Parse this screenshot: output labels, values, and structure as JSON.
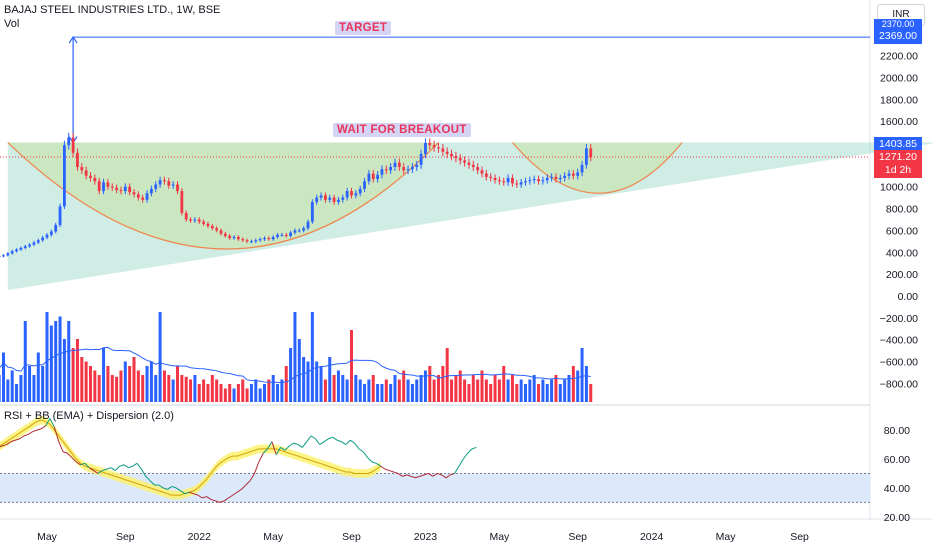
{
  "header": {
    "symbol_line": "BAJAJ STEEL INDUSTRIES LTD., 1W, BSE",
    "volume_label": "Vol",
    "rsi_label": "RSI + BB (EMA) + Dispersion (2.0)",
    "currency": "INR"
  },
  "annotations": {
    "target_label": "TARGET",
    "breakout_label": "WAIT FOR BREAKOUT"
  },
  "price_tags": {
    "target": "2369.00",
    "resistance": "1403.85",
    "last": "1271.20",
    "countdown": "1d 2h",
    "partial_top": "2370.00"
  },
  "colors": {
    "up": "#2962ff",
    "down": "#f23645",
    "triangle_fill": "#a8dccf",
    "cup_fill": "#c8e6b4",
    "rsi_band": "#fdf16a",
    "rsi_zone": "#dbe9fb",
    "target_line": "#2962ff",
    "last_price": "#f23645",
    "label_bg": "#d4d4f5",
    "label_text": "#e8355a"
  },
  "chart_data": [
    {
      "type": "candlestick",
      "title": "BAJAJ STEEL INDUSTRIES LTD., 1W, BSE",
      "ylim": [
        -800,
        2400
      ],
      "y_ticks": [
        2200,
        2000,
        1800,
        1600,
        1400,
        1200,
        1000,
        800,
        600,
        400,
        200,
        0,
        -200,
        -400,
        -600,
        -800
      ],
      "y_tick_labels": [
        "2200.00",
        "2000.00",
        "1800.00",
        "1600.00",
        "1400.00",
        "1200.00",
        "1000.00",
        "800.00",
        "600.00",
        "400.00",
        "200.00",
        "0.00",
        "−200.00",
        "−400.00",
        "−600.00",
        "−800.00"
      ],
      "x_labels": [
        "May",
        "Sep",
        "2022",
        "May",
        "Sep",
        "2023",
        "May",
        "Sep",
        "2024",
        "May",
        "Sep"
      ],
      "x_label_weeks": [
        0,
        18,
        35,
        52,
        70,
        87,
        104,
        122,
        139,
        156,
        173
      ],
      "start_week": -12,
      "close": [
        360,
        365,
        372,
        390,
        410,
        425,
        440,
        455,
        470,
        490,
        510,
        535,
        560,
        590,
        650,
        820,
        1380,
        1450,
        1310,
        1180,
        1150,
        1100,
        1080,
        1050,
        960,
        1040,
        1000,
        990,
        970,
        960,
        1000,
        950,
        930,
        900,
        880,
        940,
        980,
        1020,
        1060,
        1050,
        1010,
        1020,
        960,
        760,
        700,
        690,
        700,
        680,
        660,
        640,
        620,
        600,
        570,
        550,
        530,
        540,
        520,
        510,
        500,
        500,
        510,
        520,
        530,
        520,
        540,
        560,
        560,
        550,
        580,
        600,
        600,
        620,
        680,
        860,
        900,
        920,
        880,
        900,
        860,
        880,
        900,
        960,
        920,
        940,
        980,
        1050,
        1120,
        1070,
        1110,
        1160,
        1150,
        1180,
        1220,
        1180,
        1150,
        1160,
        1180,
        1200,
        1300,
        1400,
        1380,
        1360,
        1350,
        1320,
        1300,
        1280,
        1260,
        1240,
        1220,
        1200,
        1180,
        1150,
        1120,
        1090,
        1080,
        1060,
        1050,
        1040,
        1080,
        1030,
        1020,
        1040,
        1050,
        1060,
        1070,
        1050,
        1060,
        1080,
        1090,
        1070,
        1080,
        1100,
        1120,
        1100,
        1130,
        1200,
        1350,
        1271
      ],
      "triangle": {
        "apex": [
          -9,
          55
        ],
        "top_left": [
          -9,
          1404
        ],
        "top_right": [
          205,
          1404
        ]
      },
      "cup_arcs": [
        {
          "from": [
            -9,
            1404
          ],
          "to": [
            90,
            1404
          ],
          "bottom": [
            42,
            430
          ]
        },
        {
          "from": [
            107,
            1404
          ],
          "to": [
            146,
            1404
          ],
          "bottom": [
            127,
            940
          ]
        }
      ],
      "target_arrow": {
        "week": 6,
        "from": 1404,
        "to": 2369
      },
      "levels": {
        "target": 2369,
        "resistance": 1403.85,
        "last_price": 1271.2
      }
    },
    {
      "type": "bar",
      "series": [
        {
          "values": [
            45,
            30,
            55,
            25,
            35,
            20,
            30,
            90,
            40,
            30,
            55,
            40,
            100,
            85,
            90,
            95,
            70,
            90,
            60,
            70,
            50,
            45,
            40,
            35,
            30,
            60,
            40,
            30,
            28,
            35,
            45,
            40,
            50,
            35,
            30,
            40,
            45,
            30,
            100,
            35,
            30,
            25,
            40,
            30,
            28,
            25,
            30,
            20,
            25,
            20,
            30,
            25,
            20,
            15,
            20,
            15,
            20,
            25,
            15,
            20,
            25,
            15,
            20,
            25,
            30,
            20,
            25,
            40,
            60,
            100,
            70,
            50,
            45,
            100,
            45,
            40,
            25,
            50,
            30,
            35,
            30,
            25,
            80,
            30,
            25,
            20,
            25,
            30,
            20,
            20,
            25,
            20,
            30,
            25,
            35,
            25,
            20,
            25,
            30,
            35,
            40,
            25,
            30,
            40,
            60,
            25,
            30,
            35,
            25,
            20,
            30,
            25,
            35,
            25,
            20,
            30,
            25,
            40,
            25,
            30,
            20,
            25,
            20,
            25,
            30,
            20,
            25,
            20,
            25,
            30,
            20,
            25,
            30,
            40,
            35,
            60,
            40,
            20
          ]
        }
      ]
    },
    {
      "type": "line",
      "title": "RSI + BB (EMA) + Dispersion (2.0)",
      "ylim": [
        20,
        90
      ],
      "y_ticks": [
        80,
        60,
        40,
        20
      ],
      "y_tick_labels": [
        "80.00",
        "60.00",
        "40.00",
        "20.00"
      ],
      "levels": [
        50,
        30
      ],
      "rsi": [
        63,
        64,
        66,
        68,
        69,
        70,
        72,
        73,
        74,
        76,
        77,
        79,
        80,
        81,
        83,
        88,
        82,
        72,
        65,
        64,
        61,
        58,
        56,
        57,
        54,
        52,
        50,
        52,
        53,
        54,
        52,
        55,
        56,
        54,
        55,
        57,
        53,
        48,
        45,
        42,
        42,
        40,
        39,
        41,
        40,
        38,
        36,
        37,
        36,
        35,
        33,
        34,
        32,
        31,
        30,
        31,
        33,
        35,
        37,
        39,
        42,
        45,
        50,
        58,
        64,
        67,
        72,
        63,
        68,
        66,
        69,
        71,
        70,
        68,
        72,
        76,
        74,
        70,
        72,
        74,
        75,
        73,
        72,
        70,
        73,
        71,
        67,
        65,
        61,
        58,
        57,
        55,
        53,
        52,
        51,
        50,
        48,
        49,
        48,
        47,
        48,
        49,
        50,
        48,
        50,
        49,
        47,
        49,
        50,
        55,
        60,
        64,
        67,
        68
      ],
      "basis": [
        62,
        64,
        66,
        68,
        70,
        72,
        74,
        76,
        78,
        80,
        82,
        84,
        86,
        87,
        86,
        84,
        80,
        76,
        72,
        68,
        64,
        60,
        57,
        55,
        54,
        53,
        52,
        51,
        50,
        49,
        48,
        47,
        46,
        45,
        44,
        43,
        42,
        41,
        40,
        39,
        38,
        37,
        36,
        35,
        35,
        35,
        36,
        37,
        38,
        40,
        43,
        46,
        50,
        54,
        57,
        59,
        61,
        62,
        62,
        63,
        64,
        65,
        66,
        67,
        67,
        67,
        67,
        67,
        66,
        65,
        64,
        63,
        62,
        61,
        60,
        59,
        58,
        57,
        56,
        55,
        54,
        53,
        52,
        51,
        51,
        50,
        50,
        50,
        50,
        51,
        53,
        55
      ]
    }
  ]
}
